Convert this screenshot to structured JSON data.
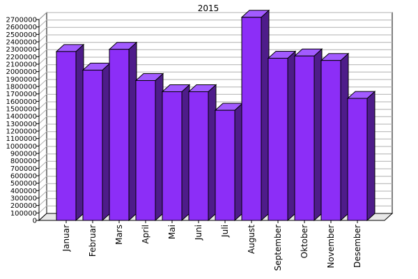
{
  "chart_data": {
    "type": "bar",
    "title": "2015",
    "categories": [
      "Januar",
      "Februar",
      "Mars",
      "April",
      "Mai",
      "Juni",
      "Juli",
      "August",
      "September",
      "Oktober",
      "November",
      "Desember"
    ],
    "values": [
      2270000,
      2020000,
      2300000,
      1880000,
      1730000,
      1730000,
      1480000,
      2730000,
      2180000,
      2210000,
      2150000,
      1640000
    ],
    "ylim": [
      0,
      2700000
    ],
    "ytick_step": 100000,
    "grid": true,
    "three_d": true,
    "colors": {
      "bar_front": "#8c2ef7",
      "bar_top": "#a25bff",
      "bar_side": "#4e1c8a",
      "edge": "#000000",
      "grid": "#b0b0b0",
      "wall": "#ffffff",
      "floor": "#e8e8e8"
    }
  }
}
